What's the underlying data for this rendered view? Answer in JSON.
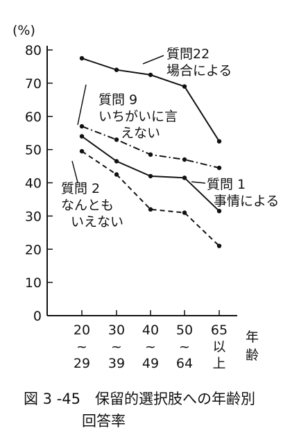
{
  "chart_data": {
    "type": "line",
    "y_unit": "(%)",
    "ylim": [
      0,
      80
    ],
    "yticks": [
      "80",
      "70",
      "60",
      "50",
      "40",
      "30",
      "20",
      "10",
      "0"
    ],
    "xlabel": "年齢",
    "categories": [
      {
        "top": "20",
        "mid": "~",
        "bottom": "29"
      },
      {
        "top": "30",
        "mid": "~",
        "bottom": "39"
      },
      {
        "top": "40",
        "mid": "~",
        "bottom": "49"
      },
      {
        "top": "50",
        "mid": "~",
        "bottom": "64"
      },
      {
        "top": "65",
        "mid": "以",
        "bottom": "上"
      }
    ],
    "series": [
      {
        "name": "質問22 場合による",
        "label_lines": [
          "質問22",
          "場合による"
        ],
        "style": "solid",
        "values": [
          77.5,
          74,
          72.5,
          69,
          52.5
        ]
      },
      {
        "name": "質問9 いちがいに言えない",
        "label_lines": [
          "質問 9",
          "いちがいに言",
          "えない"
        ],
        "style": "dashdot",
        "values": [
          57,
          53,
          48.5,
          47,
          44.5
        ]
      },
      {
        "name": "質問1 事情による",
        "label_lines": [
          "質問 1",
          "事情による"
        ],
        "style": "solid",
        "values": [
          54,
          46.5,
          42,
          41.5,
          31.5
        ]
      },
      {
        "name": "質問2 なんともいえない",
        "label_lines": [
          "質問 2",
          "なんとも",
          "いえない"
        ],
        "style": "dashed",
        "values": [
          49.5,
          42.5,
          32,
          31,
          21
        ]
      }
    ],
    "grid": false,
    "legend": "inline labels"
  },
  "caption": {
    "line1": "図 3 -45　保留的選択肢への年齢別",
    "line2": "回答率"
  }
}
